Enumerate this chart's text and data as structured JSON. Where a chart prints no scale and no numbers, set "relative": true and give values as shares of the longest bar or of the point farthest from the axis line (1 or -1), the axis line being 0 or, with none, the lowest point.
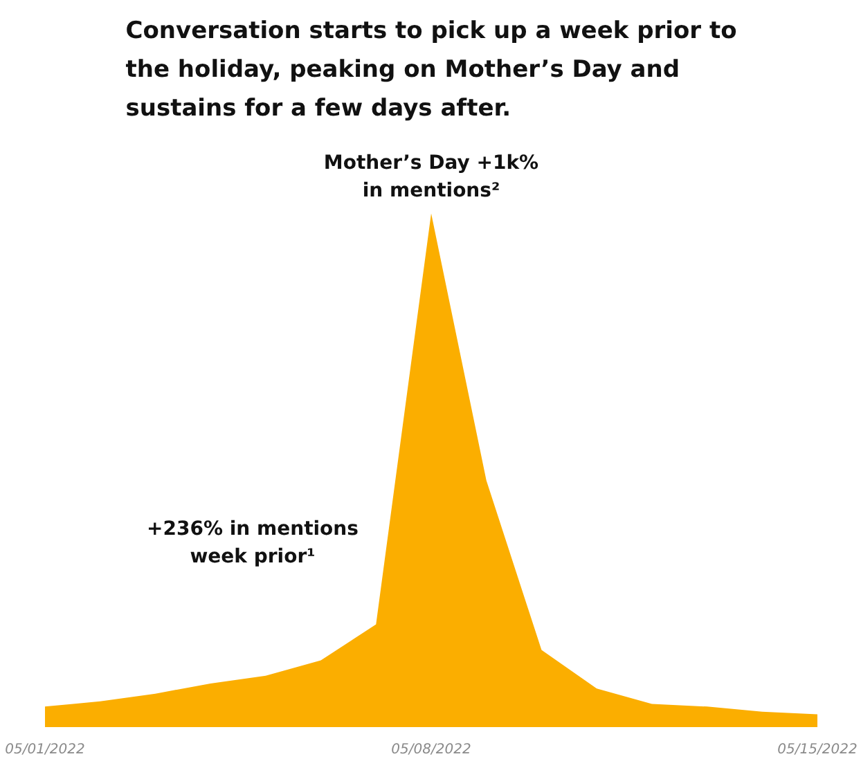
{
  "chart_data": {
    "type": "area",
    "relative": true,
    "title": "Conversation starts to pick up a week prior to the holiday, peaking on Mother’s Day and sustains for a few days after.",
    "x": [
      "2022-05-01",
      "2022-05-02",
      "2022-05-03",
      "2022-05-04",
      "2022-05-05",
      "2022-05-06",
      "2022-05-07",
      "2022-05-08",
      "2022-05-09",
      "2022-05-10",
      "2022-05-11",
      "2022-05-12",
      "2022-05-13",
      "2022-05-14",
      "2022-05-15"
    ],
    "values": [
      0.04,
      0.05,
      0.065,
      0.085,
      0.1,
      0.13,
      0.2,
      1,
      0.48,
      0.15,
      0.075,
      0.045,
      0.04,
      0.03,
      0.025
    ],
    "color": "#fbae00",
    "xlim": [
      "2022-05-01",
      "2022-05-15"
    ],
    "xticks": [
      {
        "value": "2022-05-01",
        "label": "05/01/2022"
      },
      {
        "value": "2022-05-08",
        "label": "05/08/2022"
      },
      {
        "value": "2022-05-15",
        "label": "05/15/2022"
      }
    ],
    "annotations": [
      {
        "text": "Mother’s Day +1k%\nin mentions²",
        "x": "2022-05-08",
        "y": 1
      },
      "+236% in mentions\nweek prior¹"
    ],
    "grid": false
  }
}
